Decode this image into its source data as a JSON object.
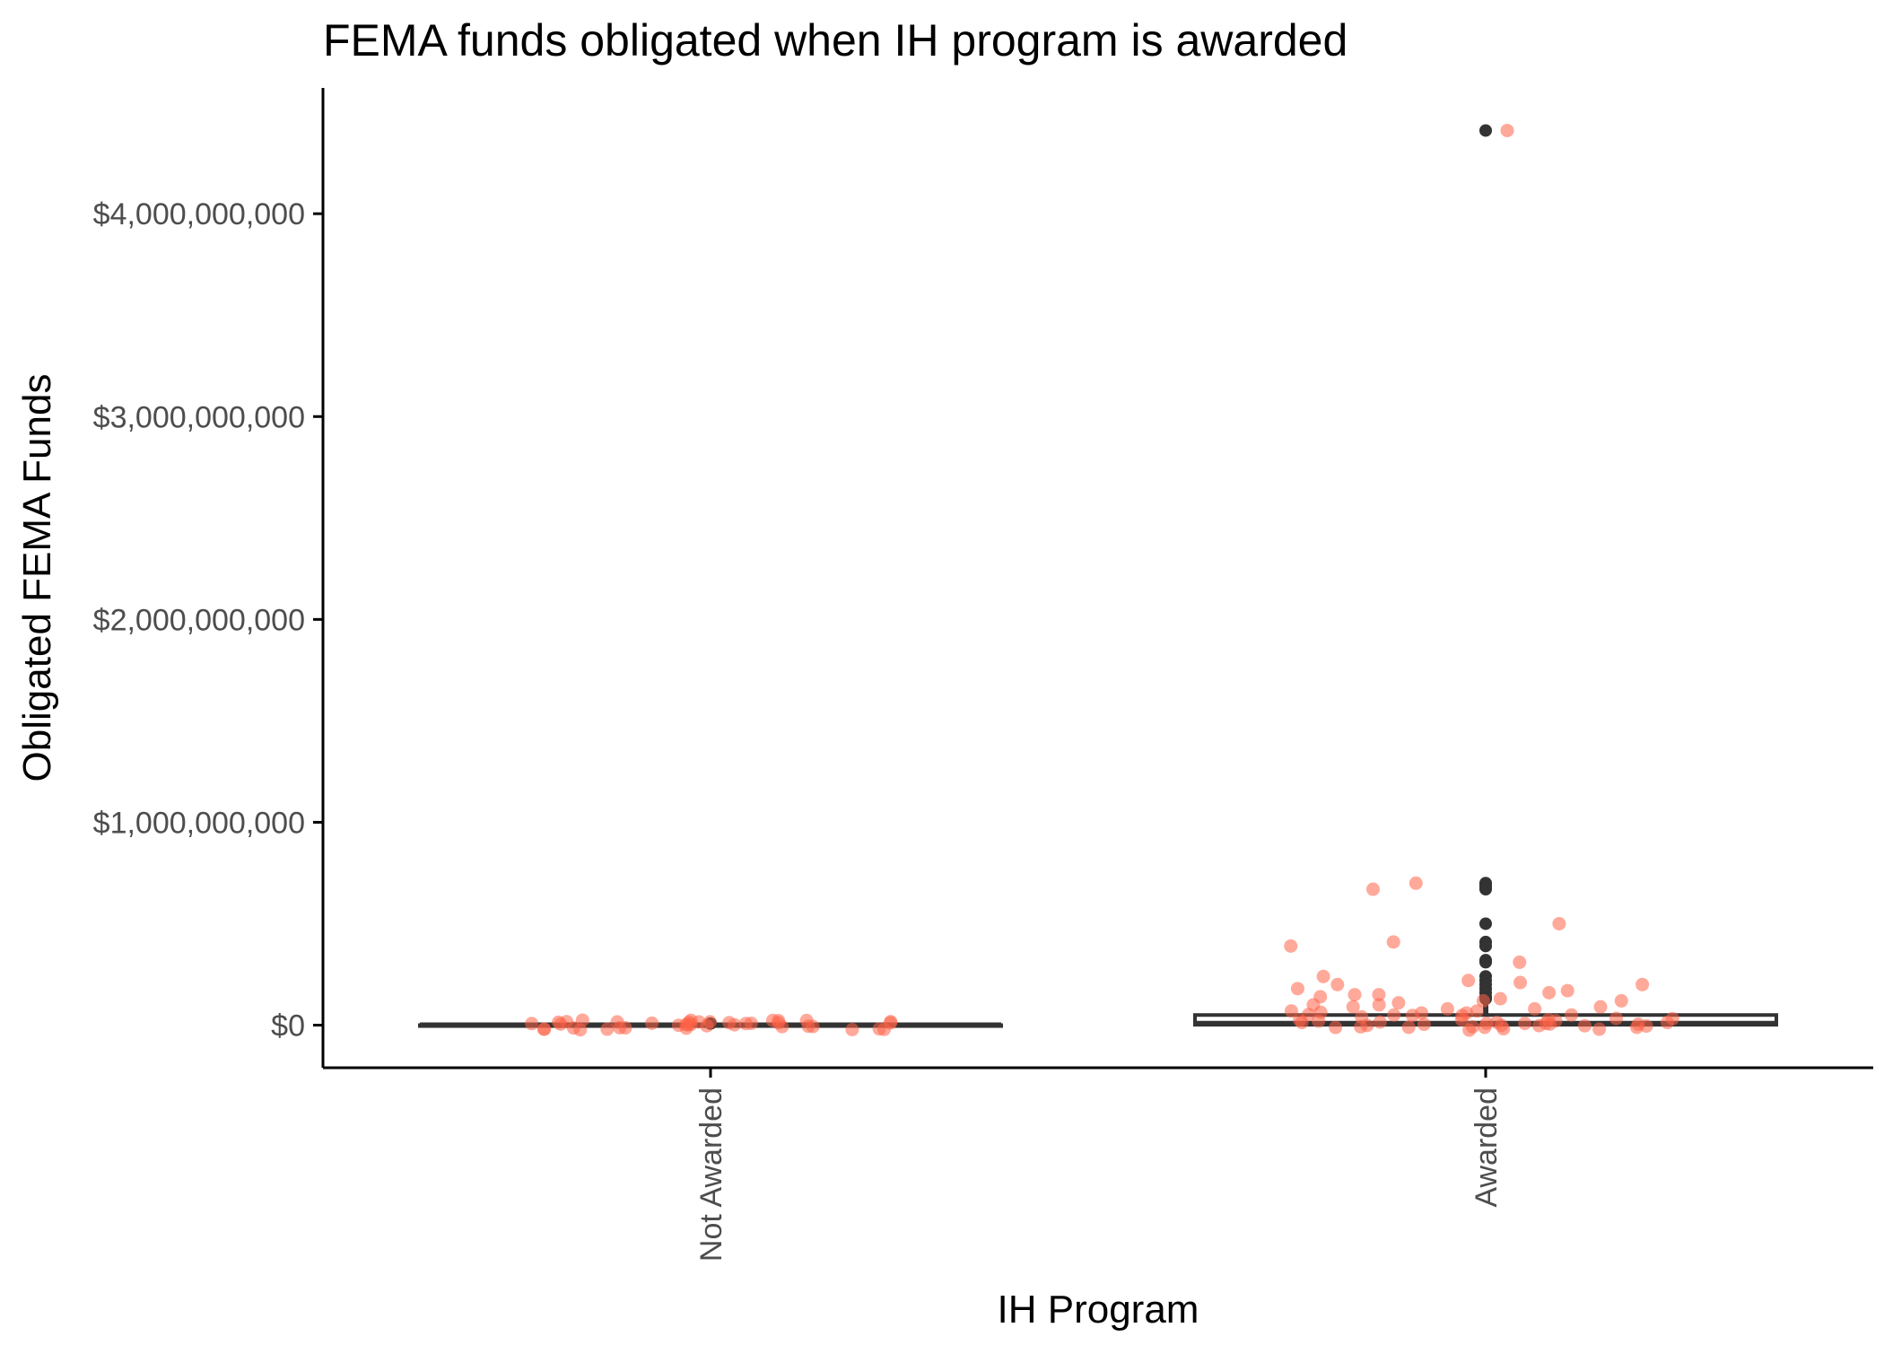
{
  "chart_data": {
    "type": "box",
    "title": "FEMA funds obligated when IH program is awarded",
    "xlabel": "IH Program",
    "ylabel": "Obligated FEMA Funds",
    "categories": [
      "Not Awarded",
      "Awarded"
    ],
    "y_ticks": [
      0,
      1000000000,
      2000000000,
      3000000000,
      4000000000
    ],
    "y_tick_labels": [
      "$0",
      "$1,000,000,000",
      "$2,000,000,000",
      "$3,000,000,000",
      "$4,000,000,000"
    ],
    "ylim": [
      -210000000,
      4620000000
    ],
    "grid": false,
    "legend": "none",
    "colors": {
      "box": "#333333",
      "points": "#ff6347",
      "outliers": "#333333"
    },
    "boxes": [
      {
        "category": "Not Awarded",
        "min": 0,
        "q1": 0,
        "median": 0,
        "q3": 0,
        "max": 0,
        "outliers": [
          8000000
        ]
      },
      {
        "category": "Awarded",
        "min": 0,
        "q1": 2000000,
        "median": 8000000,
        "q3": 50000000,
        "max": 120000000,
        "outliers": [
          4410000000,
          700000000,
          690000000,
          680000000,
          670000000,
          500000000,
          410000000,
          390000000,
          320000000,
          310000000,
          240000000,
          220000000,
          200000000,
          180000000,
          160000000,
          140000000,
          130000000
        ]
      }
    ],
    "points": [
      {
        "category": "Not Awarded",
        "values": [
          0,
          1000000,
          2000000,
          500000,
          3000000,
          1500000,
          800000,
          2500000,
          4000000,
          1200000,
          600000,
          3500000,
          2200000,
          900000,
          1800000,
          0,
          2700000,
          1100000,
          3200000,
          700000,
          1600000,
          2900000,
          400000,
          2100000,
          3800000,
          1300000,
          2400000,
          1900000,
          3100000,
          500000,
          1700000,
          2600000,
          3300000,
          1000000,
          2000000,
          3600000,
          1400000,
          2800000,
          700000,
          2300000
        ]
      },
      {
        "category": "Awarded",
        "values": [
          4410000000,
          700000000,
          670000000,
          500000000,
          410000000,
          390000000,
          310000000,
          240000000,
          220000000,
          210000000,
          200000000,
          200000000,
          180000000,
          170000000,
          160000000,
          150000000,
          150000000,
          140000000,
          130000000,
          120000000,
          120000000,
          110000000,
          100000000,
          100000000,
          90000000,
          90000000,
          80000000,
          80000000,
          70000000,
          70000000,
          60000000,
          60000000,
          50000000,
          50000000,
          40000000,
          40000000,
          30000000,
          30000000,
          20000000,
          20000000,
          10000000,
          10000000,
          5000000,
          5000000,
          0,
          0,
          0,
          2000000,
          8000000,
          15000000,
          25000000,
          35000000,
          3000000,
          12000000,
          6000000,
          1000000,
          45000000,
          18000000,
          9000000,
          4000000,
          0,
          22000000,
          14000000,
          7000000,
          0,
          28000000,
          11000000,
          3000000,
          16000000,
          0
        ]
      }
    ]
  }
}
